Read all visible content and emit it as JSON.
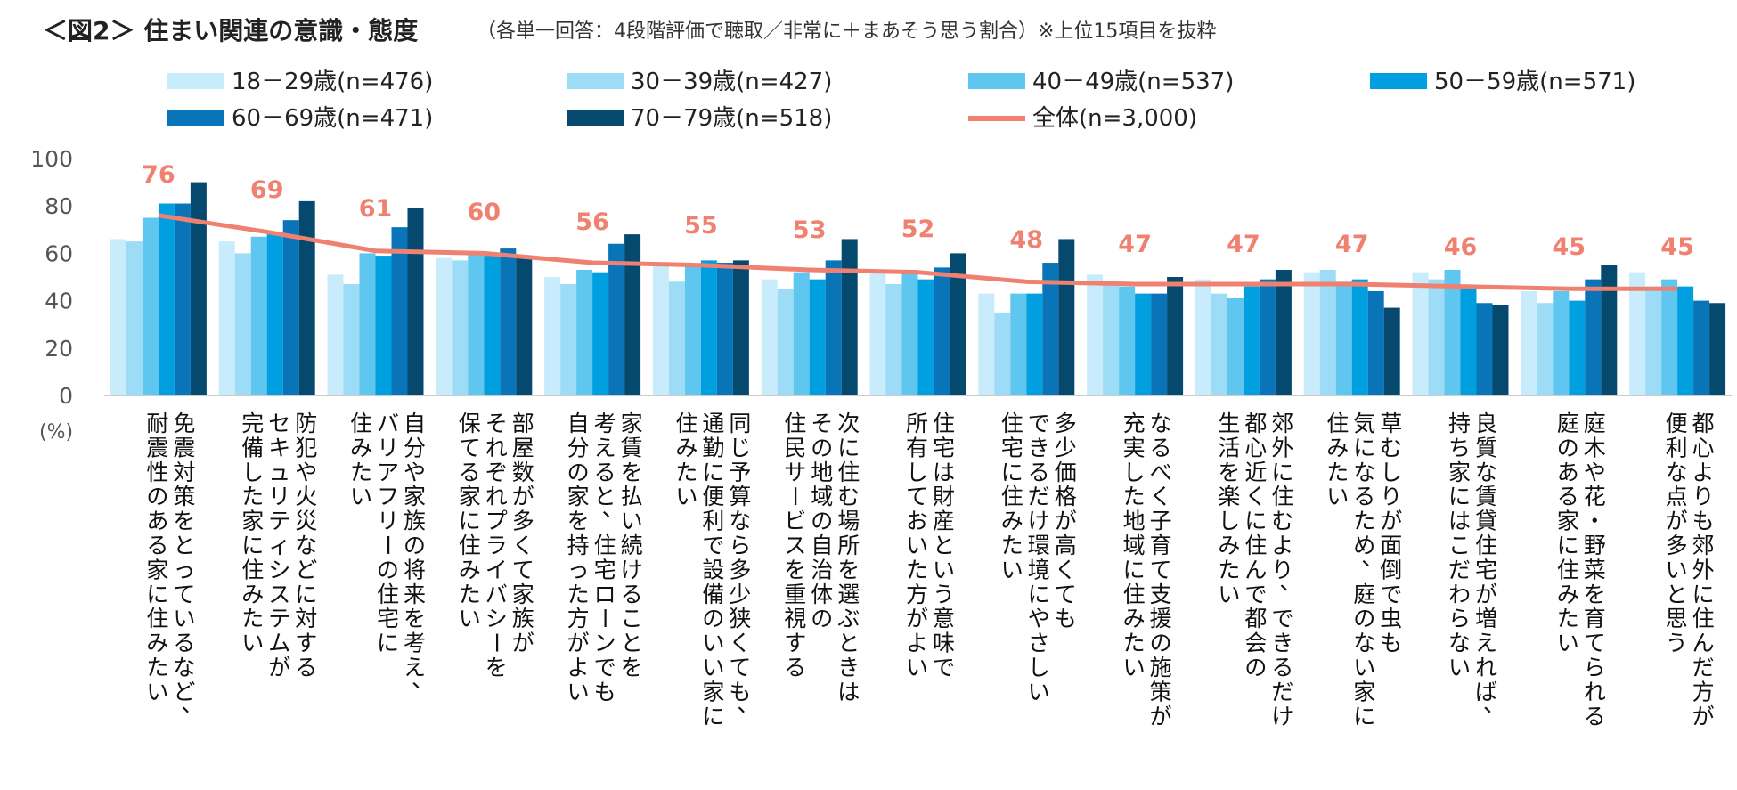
{
  "chart_data": {
    "type": "bar",
    "title": "＜図2＞ 住まい関連の意識・態度",
    "subtitle": "（各単一回答：4段階評価で聴取／非常に＋まあそう思う割合）※上位15項目を抜粋",
    "ylabel": "(%)",
    "ylim": [
      0,
      100
    ],
    "yticks": [
      "0",
      "20",
      "40",
      "60",
      "80",
      "100"
    ],
    "categories": [
      [
        "免震対策をとっているなど、",
        "耐震性のある家に住みたい"
      ],
      [
        "防犯や火災などに対する",
        "セキュリティシステムが",
        "完備した家に住みたい"
      ],
      [
        "自分や家族の将来を考え、",
        "バリアフリーの住宅に",
        "住みたい"
      ],
      [
        "部屋数が多くて家族が",
        "それぞれプライバシーを",
        "保てる家に住みたい"
      ],
      [
        "家賃を払い続けることを",
        "考えると、住宅ローンでも",
        "自分の家を持った方がよい"
      ],
      [
        "同じ予算なら多少狭くても、",
        "通勤に便利で設備のいい家に",
        "住みたい"
      ],
      [
        "次に住む場所を選ぶときは",
        "その地域の自治体の",
        "住民サービスを重視する"
      ],
      [
        "住宅は財産という意味で",
        "所有しておいた方がよい"
      ],
      [
        "多少価格が高くても",
        "できるだけ環境にやさしい",
        "住宅に住みたい"
      ],
      [
        "なるべく子育て支援の施策が",
        "充実した地域に住みたい"
      ],
      [
        "郊外に住むより、できるだけ",
        "都心近くに住んで都会の",
        "生活を楽しみたい"
      ],
      [
        "草むしりが面倒で虫も",
        "気になるため、庭のない家に",
        "住みたい"
      ],
      [
        "良質な賃貸住宅が増えれば、",
        "持ち家にはこだわらない"
      ],
      [
        "庭木や花・野菜を育てられる",
        "庭のある家に住みたい"
      ],
      [
        "都心よりも郊外に住んだ方が",
        "便利な点が多いと思う"
      ]
    ],
    "series": [
      {
        "name": "18－29歳(n=476)",
        "color": "#c8ecfb",
        "values": [
          66,
          65,
          51,
          58,
          50,
          56,
          49,
          52,
          43,
          51,
          49,
          52,
          52,
          44,
          52
        ]
      },
      {
        "name": "30－39歳(n=427)",
        "color": "#9ddcf6",
        "values": [
          65,
          60,
          47,
          57,
          47,
          48,
          45,
          47,
          35,
          48,
          43,
          53,
          49,
          39,
          46
        ]
      },
      {
        "name": "40－49歳(n=537)",
        "color": "#5ec6ef",
        "values": [
          75,
          67,
          60,
          60,
          53,
          55,
          52,
          53,
          43,
          46,
          41,
          48,
          53,
          44,
          49
        ]
      },
      {
        "name": "50－59歳(n=571)",
        "color": "#00a0e0",
        "values": [
          81,
          68,
          59,
          59,
          52,
          57,
          49,
          49,
          43,
          43,
          46,
          49,
          46,
          40,
          46
        ]
      },
      {
        "name": "60－69歳(n=471)",
        "color": "#0a74b8",
        "values": [
          81,
          74,
          71,
          62,
          64,
          56,
          57,
          54,
          56,
          43,
          49,
          44,
          39,
          49,
          40
        ]
      },
      {
        "name": "70－79歳(n=518)",
        "color": "#05496f",
        "values": [
          90,
          82,
          79,
          58,
          68,
          57,
          66,
          60,
          66,
          50,
          53,
          37,
          38,
          55,
          39
        ]
      }
    ],
    "total": {
      "name": "全体(n=3,000)",
      "color": "#f08070",
      "values": [
        76,
        69,
        61,
        60,
        56,
        55,
        53,
        52,
        48,
        47,
        47,
        47,
        46,
        45,
        45
      ]
    }
  }
}
